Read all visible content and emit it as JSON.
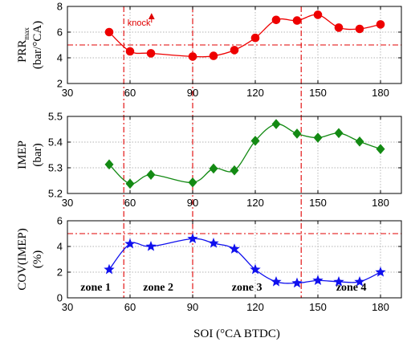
{
  "chart_data": [
    {
      "type": "line",
      "title": "",
      "xlabel": "",
      "ylabel_lines": [
        "PRR",
        "(bar/°CA)"
      ],
      "ylabel_sub": "max",
      "xlim": [
        30,
        190
      ],
      "ylim": [
        2,
        8
      ],
      "xticks": [
        30,
        60,
        90,
        120,
        150,
        180
      ],
      "yticks": [
        2,
        4,
        6,
        8
      ],
      "grid": true,
      "marker": "circle",
      "color": "#ee0000",
      "series": [
        {
          "x": [
            50,
            60,
            70,
            90,
            100,
            110,
            120,
            130,
            140,
            150,
            160,
            170,
            180
          ],
          "values": [
            6.0,
            4.5,
            4.35,
            4.1,
            4.15,
            4.6,
            5.55,
            6.95,
            6.9,
            7.35,
            6.35,
            6.25,
            6.6
          ]
        }
      ],
      "hlines": [
        5.0
      ],
      "annotation": {
        "text": "knock",
        "x": 68,
        "y": 6.3
      }
    },
    {
      "type": "line",
      "title": "",
      "xlabel": "",
      "ylabel_lines": [
        "IMEP",
        "(bar)"
      ],
      "xlim": [
        30,
        190
      ],
      "ylim": [
        5.2,
        5.5
      ],
      "xticks": [
        30,
        60,
        90,
        120,
        150,
        180
      ],
      "yticks": [
        5.2,
        5.3,
        5.4,
        5.5
      ],
      "grid": true,
      "marker": "diamond",
      "color": "#138a13",
      "series": [
        {
          "x": [
            50,
            60,
            70,
            90,
            100,
            110,
            120,
            130,
            140,
            150,
            160,
            170,
            180
          ],
          "values": [
            5.313,
            5.238,
            5.273,
            5.243,
            5.297,
            5.29,
            5.405,
            5.47,
            5.433,
            5.417,
            5.435,
            5.402,
            5.373
          ]
        }
      ]
    },
    {
      "type": "line",
      "title": "",
      "xlabel": "SOI (°CA BTDC)",
      "ylabel_lines": [
        "COV(IMEP)",
        "(%)"
      ],
      "xlim": [
        30,
        190
      ],
      "ylim": [
        0,
        6
      ],
      "xticks": [
        30,
        60,
        90,
        120,
        150,
        180
      ],
      "yticks": [
        0,
        2,
        4,
        6
      ],
      "grid": true,
      "marker": "star",
      "color": "#1010ee",
      "series": [
        {
          "x": [
            50,
            60,
            70,
            90,
            100,
            110,
            120,
            130,
            140,
            150,
            160,
            170,
            180
          ],
          "values": [
            2.2,
            4.2,
            4.0,
            4.6,
            4.25,
            3.8,
            2.2,
            1.25,
            1.15,
            1.35,
            1.25,
            1.25,
            2.0
          ]
        }
      ],
      "hlines": [
        5.0
      ],
      "zones": [
        "zone 1",
        "zone 2",
        "zone 3",
        "zone 4"
      ]
    }
  ],
  "zone_boundaries": [
    57,
    90,
    142
  ]
}
